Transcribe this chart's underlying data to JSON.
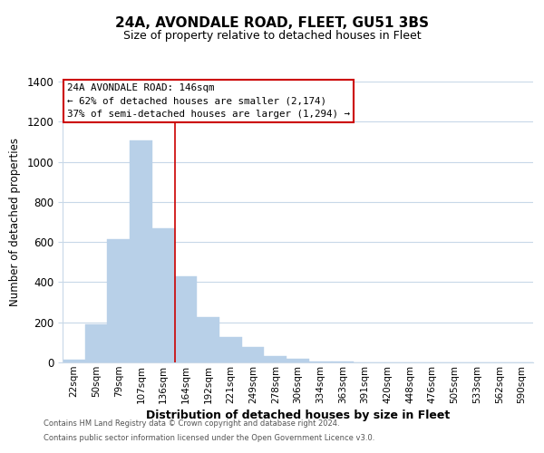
{
  "title": "24A, AVONDALE ROAD, FLEET, GU51 3BS",
  "subtitle": "Size of property relative to detached houses in Fleet",
  "xlabel": "Distribution of detached houses by size in Fleet",
  "ylabel": "Number of detached properties",
  "bar_labels": [
    "22sqm",
    "50sqm",
    "79sqm",
    "107sqm",
    "136sqm",
    "164sqm",
    "192sqm",
    "221sqm",
    "249sqm",
    "278sqm",
    "306sqm",
    "334sqm",
    "363sqm",
    "391sqm",
    "420sqm",
    "448sqm",
    "476sqm",
    "505sqm",
    "533sqm",
    "562sqm",
    "590sqm"
  ],
  "bar_heights": [
    15,
    190,
    615,
    1105,
    670,
    430,
    225,
    125,
    75,
    30,
    20,
    5,
    5,
    0,
    0,
    0,
    0,
    0,
    0,
    0,
    0
  ],
  "bar_color": "#b8d0e8",
  "bar_edge_color": "#b8d0e8",
  "vline_color": "#cc0000",
  "annotation_line1": "24A AVONDALE ROAD: 146sqm",
  "annotation_line2": "← 62% of detached houses are smaller (2,174)",
  "annotation_line3": "37% of semi-detached houses are larger (1,294) →",
  "annotation_box_color": "#ffffff",
  "annotation_box_edge": "#cc0000",
  "ylim": [
    0,
    1400
  ],
  "yticks": [
    0,
    200,
    400,
    600,
    800,
    1000,
    1200,
    1400
  ],
  "footer1": "Contains HM Land Registry data © Crown copyright and database right 2024.",
  "footer2": "Contains public sector information licensed under the Open Government Licence v3.0.",
  "background_color": "#ffffff",
  "grid_color": "#c8d8e8",
  "title_fontsize": 11,
  "subtitle_fontsize": 9
}
